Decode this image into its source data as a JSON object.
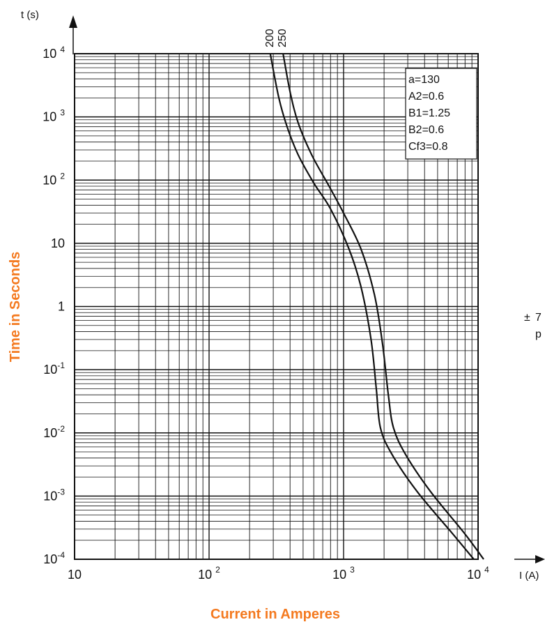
{
  "chart_data": {
    "type": "line",
    "x_scale": "log",
    "y_scale": "log",
    "xlim": [
      10,
      10000
    ],
    "ylim": [
      0.0001,
      10000
    ],
    "grid": true,
    "xlabel": "Current in Amperes",
    "ylabel": "Time in Seconds",
    "x_axis_unit_label": "I (A)",
    "y_axis_unit_label": "t (s)",
    "x_ticks": [
      {
        "value": 10,
        "base": "10",
        "exp": ""
      },
      {
        "value": 100,
        "base": "10 ",
        "exp": "2"
      },
      {
        "value": 1000,
        "base": "10 ",
        "exp": "3"
      },
      {
        "value": 10000,
        "base": "10 ",
        "exp": "4"
      }
    ],
    "y_ticks": [
      {
        "value": 10000,
        "base": "10 ",
        "exp": "4"
      },
      {
        "value": 1000,
        "base": "10 ",
        "exp": "3"
      },
      {
        "value": 100,
        "base": "10 ",
        "exp": "2"
      },
      {
        "value": 10,
        "base": "10",
        "exp": ""
      },
      {
        "value": 1,
        "base": "1",
        "exp": ""
      },
      {
        "value": 0.1,
        "base": "10",
        "exp": "-1"
      },
      {
        "value": 0.01,
        "base": "10",
        "exp": "-2"
      },
      {
        "value": 0.001,
        "base": "10",
        "exp": "-3"
      },
      {
        "value": 0.0001,
        "base": "10",
        "exp": "-4"
      }
    ],
    "series": [
      {
        "name": "200",
        "points": [
          [
            285,
            10000
          ],
          [
            330,
            2000
          ],
          [
            380,
            700
          ],
          [
            460,
            250
          ],
          [
            600,
            90
          ],
          [
            800,
            35
          ],
          [
            1100,
            8
          ],
          [
            1350,
            2
          ],
          [
            1600,
            0.3
          ],
          [
            1750,
            0.05
          ],
          [
            1880,
            0.012
          ],
          [
            2300,
            0.0045
          ],
          [
            3500,
            0.0012
          ],
          [
            6500,
            0.00025
          ],
          [
            9300,
            0.0001
          ]
        ]
      },
      {
        "name": "250",
        "points": [
          [
            355,
            10000
          ],
          [
            400,
            2500
          ],
          [
            460,
            800
          ],
          [
            580,
            250
          ],
          [
            780,
            80
          ],
          [
            1000,
            30
          ],
          [
            1350,
            8
          ],
          [
            1700,
            1.5
          ],
          [
            1950,
            0.25
          ],
          [
            2150,
            0.04
          ],
          [
            2350,
            0.012
          ],
          [
            2900,
            0.0045
          ],
          [
            4400,
            0.0012
          ],
          [
            8000,
            0.00025
          ],
          [
            11000,
            0.0001
          ]
        ]
      }
    ],
    "annotations": [
      "a=130",
      "A2=0.6",
      "B1=1.25",
      "B2=0.6",
      "Cf3=0.8"
    ],
    "side_note": {
      "symbol": "±",
      "text1": "7",
      "text2": "p"
    }
  }
}
